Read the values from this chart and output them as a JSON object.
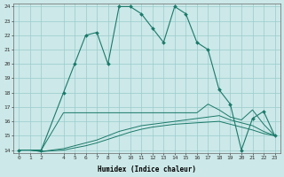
{
  "xlabel": "Humidex (Indice chaleur)",
  "xlim": [
    -0.5,
    23.5
  ],
  "ylim": [
    13.8,
    24.2
  ],
  "yticks": [
    14,
    15,
    16,
    17,
    18,
    19,
    20,
    21,
    22,
    23,
    24
  ],
  "xticks": [
    0,
    1,
    2,
    4,
    5,
    6,
    7,
    8,
    9,
    10,
    11,
    12,
    13,
    14,
    15,
    16,
    17,
    18,
    19,
    20,
    21,
    22,
    23
  ],
  "bg_color": "#cce8e8",
  "grid_color": "#99cccc",
  "line_color": "#1a7a6a",
  "line_main": {
    "x": [
      0,
      2,
      4,
      5,
      6,
      7,
      8,
      9,
      10,
      11,
      12,
      13,
      14,
      15,
      16,
      17,
      18,
      19,
      20,
      21,
      22,
      23
    ],
    "y": [
      14,
      14,
      18,
      20,
      22,
      22.2,
      20,
      24,
      24,
      23.5,
      22.5,
      21.5,
      24,
      23.5,
      21.5,
      21,
      18.2,
      17.2,
      14,
      16.2,
      16.7,
      15.0
    ]
  },
  "line_flat": {
    "x": [
      0,
      1,
      2,
      4,
      5,
      6,
      7,
      8,
      9,
      10,
      11,
      12,
      13,
      14,
      15,
      16,
      17,
      18,
      19,
      20,
      21,
      22,
      23
    ],
    "y": [
      14,
      14,
      14,
      16.6,
      16.6,
      16.6,
      16.6,
      16.6,
      16.6,
      16.6,
      16.6,
      16.6,
      16.6,
      16.6,
      16.6,
      16.6,
      17.2,
      16.8,
      16.3,
      16.1,
      16.8,
      15.8,
      15.0
    ]
  },
  "line_slope1": {
    "x": [
      0,
      1,
      2,
      4,
      5,
      6,
      7,
      8,
      9,
      10,
      11,
      12,
      13,
      14,
      15,
      16,
      17,
      18,
      19,
      20,
      21,
      22,
      23
    ],
    "y": [
      14,
      14,
      13.9,
      14.1,
      14.3,
      14.5,
      14.7,
      15.0,
      15.3,
      15.5,
      15.7,
      15.8,
      15.9,
      16.0,
      16.1,
      16.2,
      16.3,
      16.4,
      16.1,
      15.9,
      15.7,
      15.3,
      15.0
    ]
  },
  "line_slope2": {
    "x": [
      0,
      1,
      2,
      4,
      5,
      6,
      7,
      8,
      9,
      10,
      11,
      12,
      13,
      14,
      15,
      16,
      17,
      18,
      19,
      20,
      21,
      22,
      23
    ],
    "y": [
      14,
      14,
      13.9,
      14.0,
      14.15,
      14.3,
      14.5,
      14.75,
      15.0,
      15.25,
      15.45,
      15.6,
      15.7,
      15.8,
      15.85,
      15.9,
      15.95,
      16.0,
      15.8,
      15.6,
      15.4,
      15.15,
      15.0
    ]
  }
}
